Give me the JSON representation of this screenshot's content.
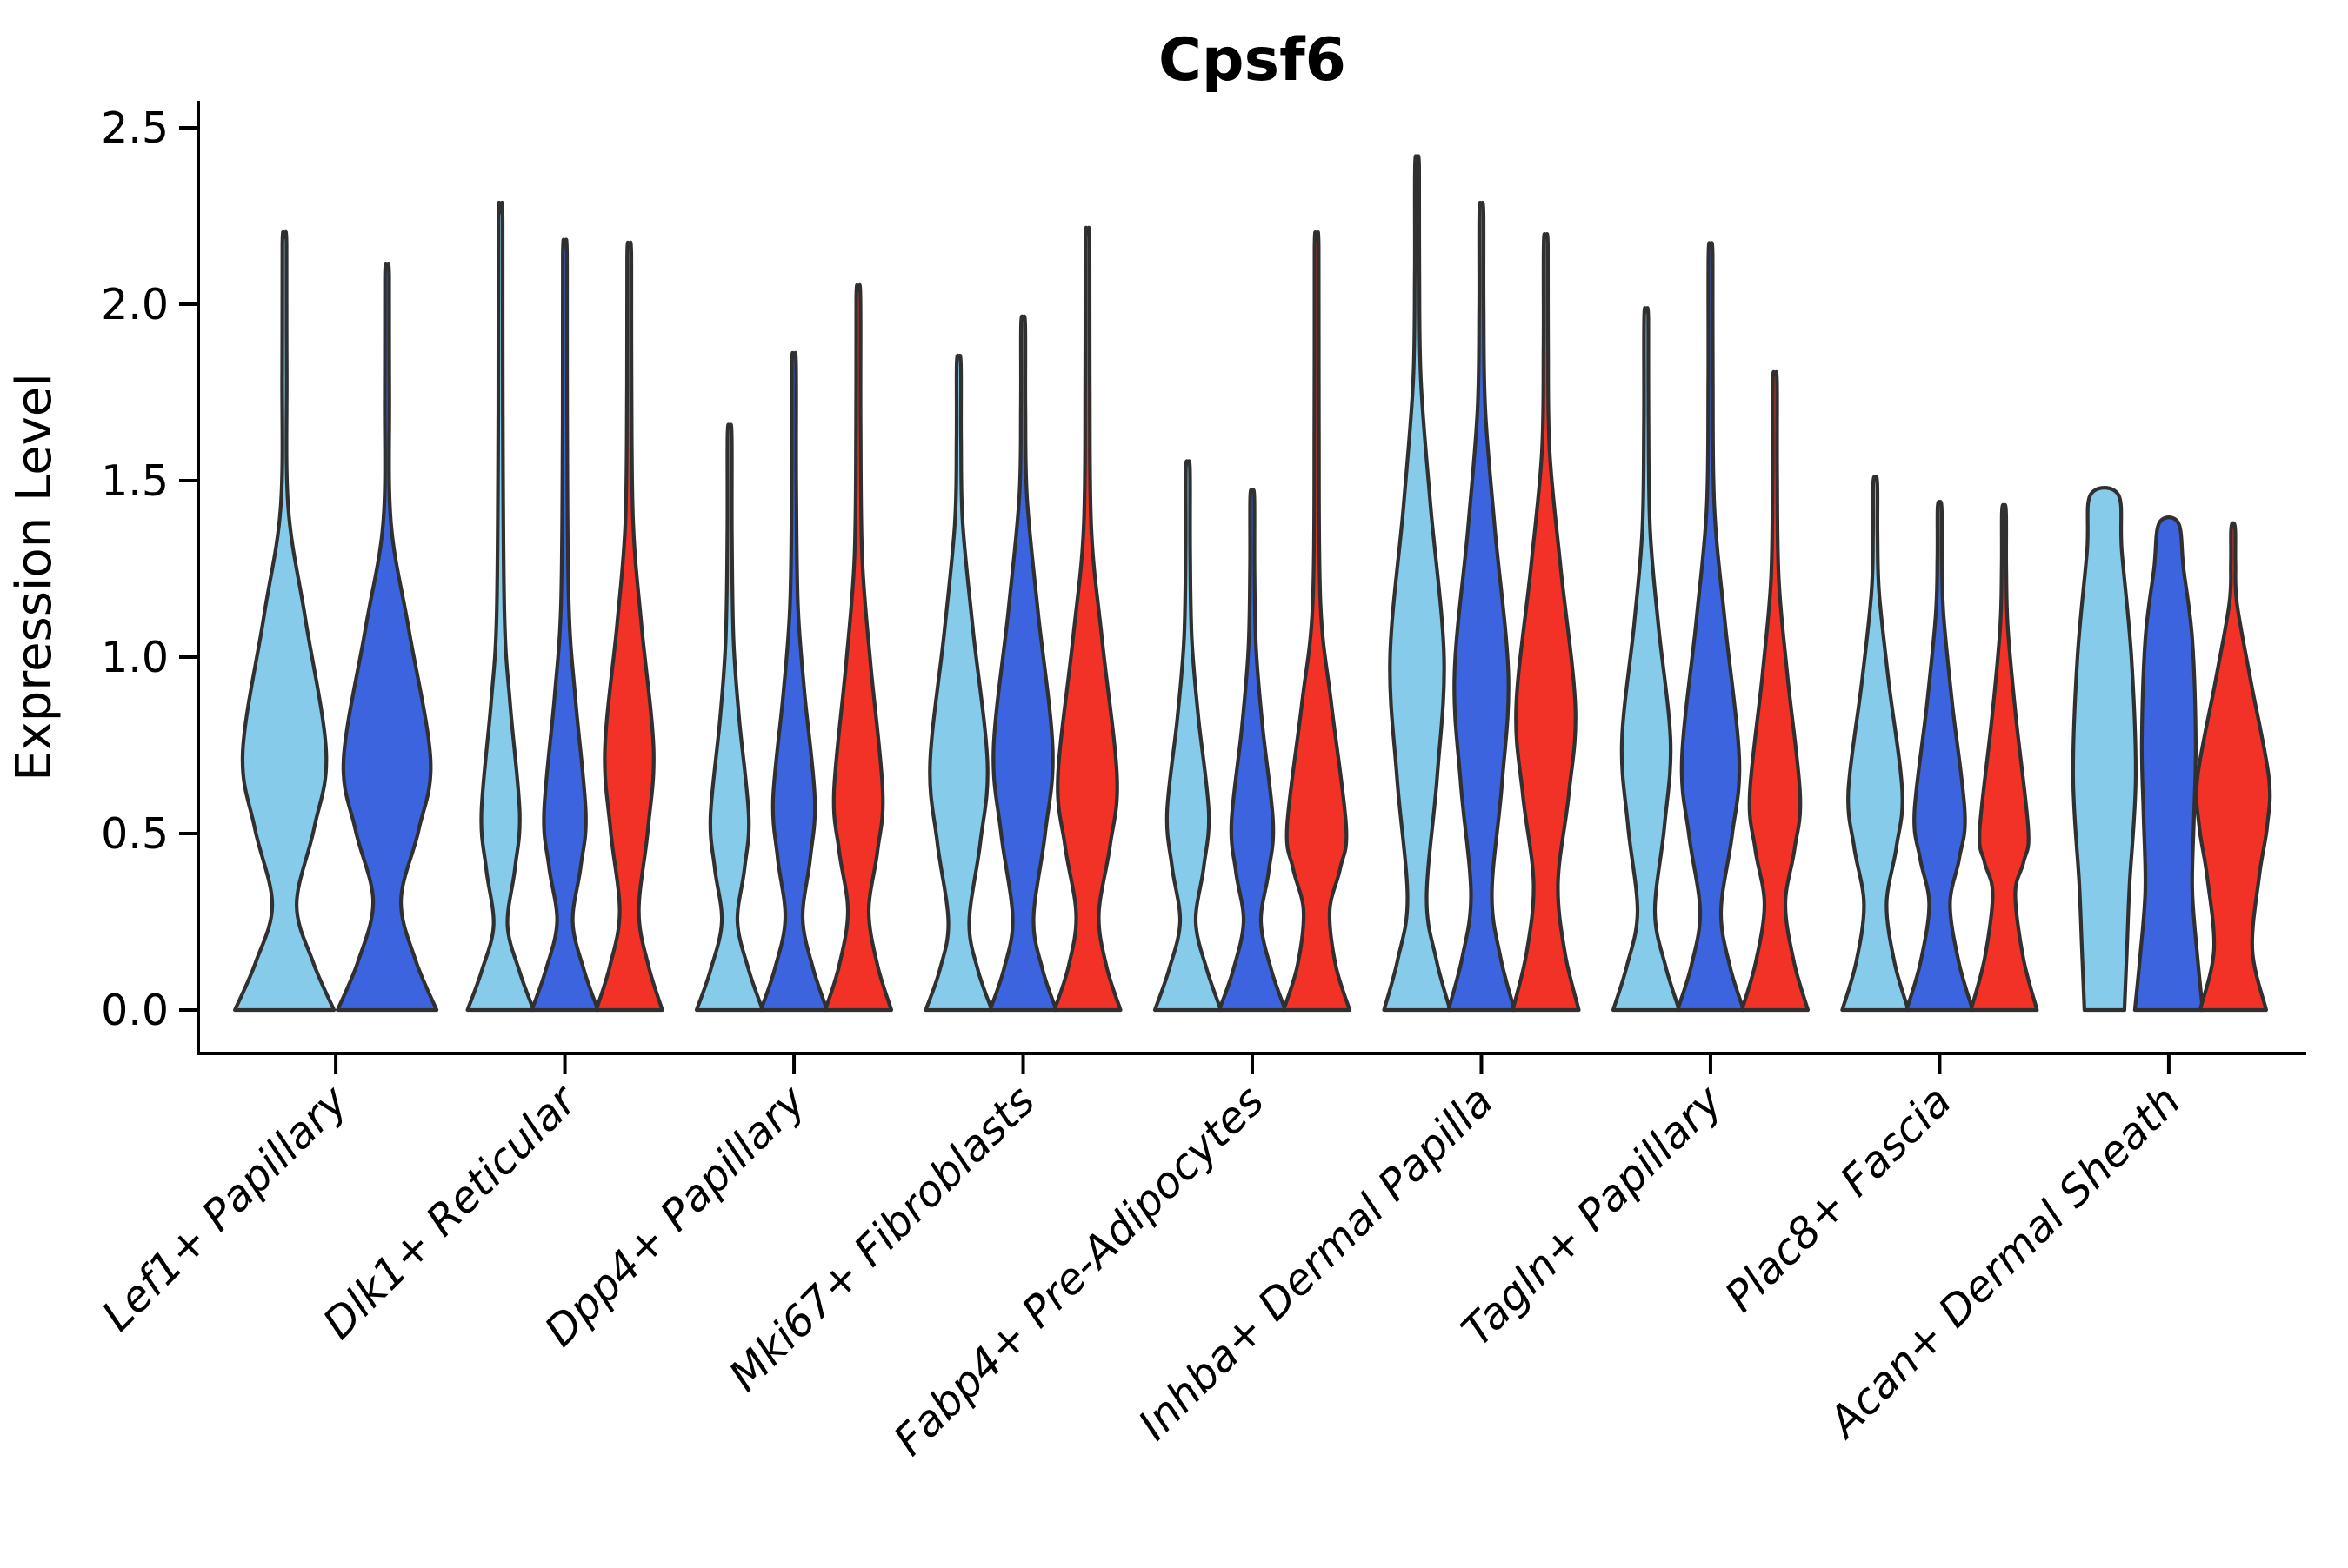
{
  "title": "Cpsf6",
  "axes": {
    "ylabel": "Expression Level",
    "ytick_labels": [
      "0.0",
      "0.5",
      "1.0",
      "1.5",
      "2.0",
      "2.5"
    ]
  },
  "chart_data": {
    "type": "violin",
    "title": "Cpsf6",
    "xlabel": "",
    "ylabel": "Expression Level",
    "ylim": [
      -0.12,
      2.57
    ],
    "yticks": [
      0.0,
      0.5,
      1.0,
      1.5,
      2.0,
      2.5
    ],
    "grid": false,
    "legend": "none",
    "outline_color": "#303030",
    "background": "#ffffff",
    "series_colors": {
      "lightblue": "#87CBEA",
      "blue": "#3B64DE",
      "red": "#F23127"
    },
    "categories": [
      "Lef1+ Papillary",
      "Dlk1+ Reticular",
      "Dpp4+ Papillary",
      "Mki67+ Fibroblasts",
      "Fabp4+ Pre-Adipocytes",
      "Inhba+ Dermal Papilla",
      "Tagln+ Papillary",
      "Plac8+ Fascia",
      "Acan+ Dermal Sheath"
    ],
    "groups": [
      {
        "category": "Lef1+ Papillary",
        "violins": [
          {
            "color": "lightblue",
            "max": 2.19,
            "base": 57,
            "pinch": [
              0.3,
              14
            ],
            "bulge": [
              0.73,
              48
            ],
            "shoulder": 1.42
          },
          {
            "color": "blue",
            "max": 2.1,
            "base": 57,
            "pinch": [
              0.31,
              16
            ],
            "bulge": [
              0.71,
              50
            ],
            "shoulder": 1.38
          }
        ]
      },
      {
        "category": "Dlk1+ Reticular",
        "violins": [
          {
            "color": "lightblue",
            "max": 2.26,
            "base": 38,
            "pinch": [
              0.24,
              8
            ],
            "bulge": [
              0.56,
              22
            ],
            "shoulder": 1.12
          },
          {
            "color": "blue",
            "max": 2.16,
            "base": 38,
            "pinch": [
              0.25,
              9
            ],
            "bulge": [
              0.56,
              24
            ],
            "shoulder": 1.15
          },
          {
            "color": "red",
            "max": 2.16,
            "base": 38,
            "pinch": [
              0.28,
              11
            ],
            "bulge": [
              0.74,
              28
            ],
            "shoulder": 1.38
          }
        ]
      },
      {
        "category": "Dpp4+ Papillary",
        "violins": [
          {
            "color": "lightblue",
            "max": 1.65,
            "base": 38,
            "pinch": [
              0.25,
              9
            ],
            "bulge": [
              0.55,
              22
            ],
            "shoulder": 1.05
          },
          {
            "color": "blue",
            "max": 1.85,
            "base": 38,
            "pinch": [
              0.26,
              10
            ],
            "bulge": [
              0.6,
              24
            ],
            "shoulder": 1.15
          },
          {
            "color": "red",
            "max": 2.04,
            "base": 38,
            "pinch": [
              0.28,
              12
            ],
            "bulge": [
              0.62,
              28
            ],
            "shoulder": 1.28
          }
        ]
      },
      {
        "category": "Mki67+ Fibroblasts",
        "violins": [
          {
            "color": "lightblue",
            "max": 1.85,
            "base": 38,
            "pinch": [
              0.25,
              12
            ],
            "bulge": [
              0.7,
              33
            ],
            "shoulder": 1.38
          },
          {
            "color": "blue",
            "max": 1.96,
            "base": 38,
            "pinch": [
              0.26,
              12
            ],
            "bulge": [
              0.74,
              34
            ],
            "shoulder": 1.45
          },
          {
            "color": "red",
            "max": 2.2,
            "base": 38,
            "pinch": [
              0.27,
              13
            ],
            "bulge": [
              0.66,
              34
            ],
            "shoulder": 1.36
          }
        ]
      },
      {
        "category": "Fabp4+ Pre-Adipocytes",
        "violins": [
          {
            "color": "lightblue",
            "max": 1.55,
            "base": 38,
            "pinch": [
              0.25,
              9
            ],
            "bulge": [
              0.56,
              24
            ],
            "shoulder": 1.05
          },
          {
            "color": "blue",
            "max": 1.47,
            "base": 38,
            "pinch": [
              0.25,
              10
            ],
            "bulge": [
              0.53,
              24
            ],
            "shoulder": 1.02
          },
          {
            "color": "red",
            "max": 2.18,
            "base": 38,
            "pinch": [
              0.28,
              15
            ],
            "bulge": [
              0.52,
              34
            ],
            "shoulder": 1.15
          }
        ]
      },
      {
        "category": "Inhba+ Dermal Papilla",
        "violins": [
          {
            "color": "lightblue",
            "max": 2.41,
            "base": 38,
            "pinch": [
              0.32,
              11
            ],
            "bulge": [
              1.0,
              31
            ],
            "shoulder": 1.78
          },
          {
            "color": "blue",
            "max": 2.28,
            "base": 38,
            "pinch": [
              0.33,
              12
            ],
            "bulge": [
              0.95,
              31
            ],
            "shoulder": 1.7
          },
          {
            "color": "red",
            "max": 2.19,
            "base": 38,
            "pinch": [
              0.36,
              14
            ],
            "bulge": [
              0.86,
              34
            ],
            "shoulder": 1.58
          }
        ]
      },
      {
        "category": "Tagln+ Papillary",
        "violins": [
          {
            "color": "lightblue",
            "max": 1.98,
            "base": 38,
            "pinch": [
              0.28,
              10
            ],
            "bulge": [
              0.76,
              28
            ],
            "shoulder": 1.36
          },
          {
            "color": "blue",
            "max": 2.16,
            "base": 38,
            "pinch": [
              0.28,
              12
            ],
            "bulge": [
              0.71,
              33
            ],
            "shoulder": 1.42
          },
          {
            "color": "red",
            "max": 1.8,
            "base": 38,
            "pinch": [
              0.3,
              12
            ],
            "bulge": [
              0.61,
              29
            ],
            "shoulder": 1.22
          }
        ]
      },
      {
        "category": "Plac8+ Fascia",
        "violins": [
          {
            "color": "lightblue",
            "max": 1.51,
            "base": 38,
            "pinch": [
              0.3,
              13
            ],
            "bulge": [
              0.62,
              31
            ],
            "shoulder": 1.18
          },
          {
            "color": "blue",
            "max": 1.44,
            "base": 38,
            "pinch": [
              0.3,
              12
            ],
            "bulge": [
              0.56,
              29
            ],
            "shoulder": 1.12
          },
          {
            "color": "red",
            "max": 1.43,
            "base": 38,
            "pinch": [
              0.33,
              13
            ],
            "bulge": [
              0.51,
              28
            ],
            "shoulder": 1.08
          }
        ]
      },
      {
        "category": "Acan+ Dermal Sheath",
        "violins": [
          {
            "color": "lightblue",
            "max": 1.46,
            "flat_top": true,
            "pts": [
              [
                0,
                23
              ],
              [
                0.18,
                26
              ],
              [
                0.36,
                29
              ],
              [
                0.66,
                36
              ],
              [
                1.0,
                31
              ],
              [
                1.3,
                20
              ],
              [
                1.46,
                16
              ]
            ]
          },
          {
            "color": "blue",
            "max": 1.38,
            "flat_top": true,
            "pts": [
              [
                0,
                39
              ],
              [
                0.15,
                33
              ],
              [
                0.34,
                27
              ],
              [
                0.55,
                29
              ],
              [
                0.76,
                31
              ],
              [
                1.05,
                27
              ],
              [
                1.25,
                17
              ],
              [
                1.38,
                11
              ]
            ]
          },
          {
            "color": "red",
            "max": 1.38,
            "base": 38,
            "pinch": [
              0.38,
              30
            ],
            "bulge": [
              0.66,
              41
            ],
            "shoulder": 1.15
          }
        ]
      }
    ]
  }
}
